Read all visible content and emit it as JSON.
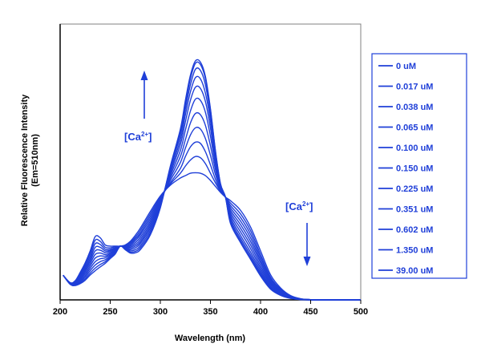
{
  "chart_data": {
    "type": "line",
    "xlabel": "Wavelength (nm)",
    "ylabel": "Relative Fluorescence Intensity",
    "ylabel_sub": "(Em=510nm)",
    "xlim": [
      200,
      500
    ],
    "ylim": [
      0,
      1.0
    ],
    "xticks": [
      200,
      250,
      300,
      350,
      400,
      450,
      500
    ],
    "grid": false,
    "legend_position": "right",
    "line_color": "#1f3fd8",
    "annotations": [
      {
        "text_main": "[Ca",
        "text_sup": "2+",
        "text_end": "]",
        "arrow": "up"
      },
      {
        "text_main": "[Ca",
        "text_sup": "2+",
        "text_end": "]",
        "arrow": "down"
      }
    ],
    "x": [
      203,
      210,
      215,
      220,
      225,
      230,
      235,
      240,
      245,
      250,
      255,
      260,
      265,
      270,
      275,
      280,
      290,
      300,
      310,
      320,
      325,
      330,
      335,
      340,
      345,
      350,
      355,
      360,
      365,
      370,
      380,
      390,
      400,
      410,
      420,
      430,
      440,
      450,
      460,
      500
    ],
    "series": [
      {
        "name": "0 uM",
        "values": [
          0.103,
          0.072,
          0.08,
          0.115,
          0.155,
          0.205,
          0.265,
          0.26,
          0.23,
          0.225,
          0.225,
          0.225,
          0.23,
          0.245,
          0.27,
          0.3,
          0.37,
          0.435,
          0.48,
          0.51,
          0.52,
          0.53,
          0.532,
          0.53,
          0.52,
          0.5,
          0.475,
          0.45,
          0.43,
          0.415,
          0.375,
          0.305,
          0.205,
          0.105,
          0.05,
          0.018,
          0.005,
          0.001,
          0.0,
          0.0
        ]
      },
      {
        "name": "0.017 uM",
        "values": [
          0.103,
          0.072,
          0.078,
          0.11,
          0.148,
          0.195,
          0.25,
          0.245,
          0.22,
          0.218,
          0.222,
          0.225,
          0.228,
          0.24,
          0.262,
          0.29,
          0.36,
          0.43,
          0.485,
          0.53,
          0.56,
          0.585,
          0.6,
          0.595,
          0.57,
          0.53,
          0.49,
          0.455,
          0.43,
          0.405,
          0.36,
          0.29,
          0.19,
          0.095,
          0.045,
          0.016,
          0.004,
          0.001,
          0.0,
          0.0
        ]
      },
      {
        "name": "0.038 uM",
        "values": [
          0.103,
          0.071,
          0.076,
          0.105,
          0.14,
          0.183,
          0.235,
          0.232,
          0.212,
          0.212,
          0.218,
          0.225,
          0.226,
          0.235,
          0.255,
          0.28,
          0.35,
          0.425,
          0.49,
          0.55,
          0.6,
          0.64,
          0.66,
          0.655,
          0.62,
          0.565,
          0.505,
          0.46,
          0.43,
          0.395,
          0.345,
          0.275,
          0.178,
          0.088,
          0.041,
          0.014,
          0.004,
          0.001,
          0.0,
          0.0
        ]
      },
      {
        "name": "0.065 uM",
        "values": [
          0.103,
          0.07,
          0.074,
          0.1,
          0.132,
          0.172,
          0.22,
          0.22,
          0.205,
          0.207,
          0.215,
          0.225,
          0.224,
          0.23,
          0.248,
          0.272,
          0.34,
          0.42,
          0.5,
          0.575,
          0.635,
          0.69,
          0.72,
          0.715,
          0.675,
          0.605,
          0.525,
          0.465,
          0.43,
          0.385,
          0.33,
          0.26,
          0.166,
          0.081,
          0.037,
          0.013,
          0.003,
          0.001,
          0.0,
          0.0
        ]
      },
      {
        "name": "0.100 uM",
        "values": [
          0.103,
          0.07,
          0.072,
          0.095,
          0.125,
          0.162,
          0.205,
          0.208,
          0.198,
          0.203,
          0.212,
          0.225,
          0.222,
          0.225,
          0.24,
          0.262,
          0.33,
          0.415,
          0.51,
          0.6,
          0.67,
          0.74,
          0.78,
          0.775,
          0.73,
          0.645,
          0.545,
          0.47,
          0.43,
          0.375,
          0.315,
          0.245,
          0.155,
          0.074,
          0.034,
          0.012,
          0.003,
          0.001,
          0.0,
          0.0
        ]
      },
      {
        "name": "0.150 uM",
        "values": [
          0.103,
          0.069,
          0.07,
          0.09,
          0.118,
          0.152,
          0.19,
          0.196,
          0.19,
          0.198,
          0.208,
          0.225,
          0.22,
          0.22,
          0.232,
          0.252,
          0.32,
          0.41,
          0.52,
          0.625,
          0.71,
          0.79,
          0.84,
          0.835,
          0.785,
          0.685,
          0.565,
          0.475,
          0.43,
          0.365,
          0.3,
          0.23,
          0.143,
          0.068,
          0.031,
          0.011,
          0.003,
          0.001,
          0.0,
          0.0
        ]
      },
      {
        "name": "0.225 uM",
        "values": [
          0.103,
          0.068,
          0.068,
          0.085,
          0.11,
          0.142,
          0.175,
          0.184,
          0.183,
          0.193,
          0.205,
          0.225,
          0.218,
          0.215,
          0.225,
          0.243,
          0.31,
          0.405,
          0.53,
          0.65,
          0.745,
          0.835,
          0.89,
          0.885,
          0.83,
          0.72,
          0.58,
          0.478,
          0.43,
          0.355,
          0.285,
          0.215,
          0.132,
          0.062,
          0.028,
          0.01,
          0.002,
          0.0,
          0.0,
          0.0
        ]
      },
      {
        "name": "0.351 uM",
        "values": [
          0.103,
          0.068,
          0.066,
          0.08,
          0.102,
          0.132,
          0.16,
          0.172,
          0.176,
          0.188,
          0.202,
          0.225,
          0.216,
          0.21,
          0.218,
          0.235,
          0.3,
          0.4,
          0.54,
          0.67,
          0.775,
          0.87,
          0.93,
          0.925,
          0.865,
          0.75,
          0.595,
          0.48,
          0.43,
          0.345,
          0.27,
          0.2,
          0.122,
          0.056,
          0.025,
          0.009,
          0.002,
          0.0,
          0.0,
          0.0
        ]
      },
      {
        "name": "0.602 uM",
        "values": [
          0.103,
          0.067,
          0.064,
          0.076,
          0.095,
          0.122,
          0.146,
          0.16,
          0.168,
          0.183,
          0.198,
          0.225,
          0.214,
          0.205,
          0.21,
          0.226,
          0.29,
          0.395,
          0.55,
          0.69,
          0.8,
          0.9,
          0.965,
          0.96,
          0.9,
          0.775,
          0.61,
          0.483,
          0.43,
          0.335,
          0.258,
          0.188,
          0.113,
          0.052,
          0.023,
          0.008,
          0.002,
          0.0,
          0.0,
          0.0
        ]
      },
      {
        "name": "1.350 uM",
        "values": [
          0.103,
          0.066,
          0.062,
          0.072,
          0.088,
          0.112,
          0.133,
          0.148,
          0.16,
          0.178,
          0.195,
          0.225,
          0.212,
          0.2,
          0.203,
          0.218,
          0.28,
          0.39,
          0.555,
          0.705,
          0.82,
          0.925,
          0.99,
          0.985,
          0.925,
          0.795,
          0.62,
          0.485,
          0.43,
          0.327,
          0.248,
          0.178,
          0.106,
          0.048,
          0.021,
          0.007,
          0.002,
          0.0,
          0.0,
          0.0
        ]
      },
      {
        "name": "39.00 uM",
        "values": [
          0.103,
          0.065,
          0.06,
          0.068,
          0.082,
          0.104,
          0.122,
          0.138,
          0.153,
          0.173,
          0.192,
          0.225,
          0.21,
          0.196,
          0.197,
          0.21,
          0.272,
          0.385,
          0.56,
          0.715,
          0.835,
          0.94,
          1.0,
          0.995,
          0.935,
          0.8,
          0.625,
          0.487,
          0.43,
          0.32,
          0.24,
          0.17,
          0.1,
          0.045,
          0.019,
          0.006,
          0.001,
          0.0,
          0.0,
          0.0
        ]
      }
    ]
  }
}
